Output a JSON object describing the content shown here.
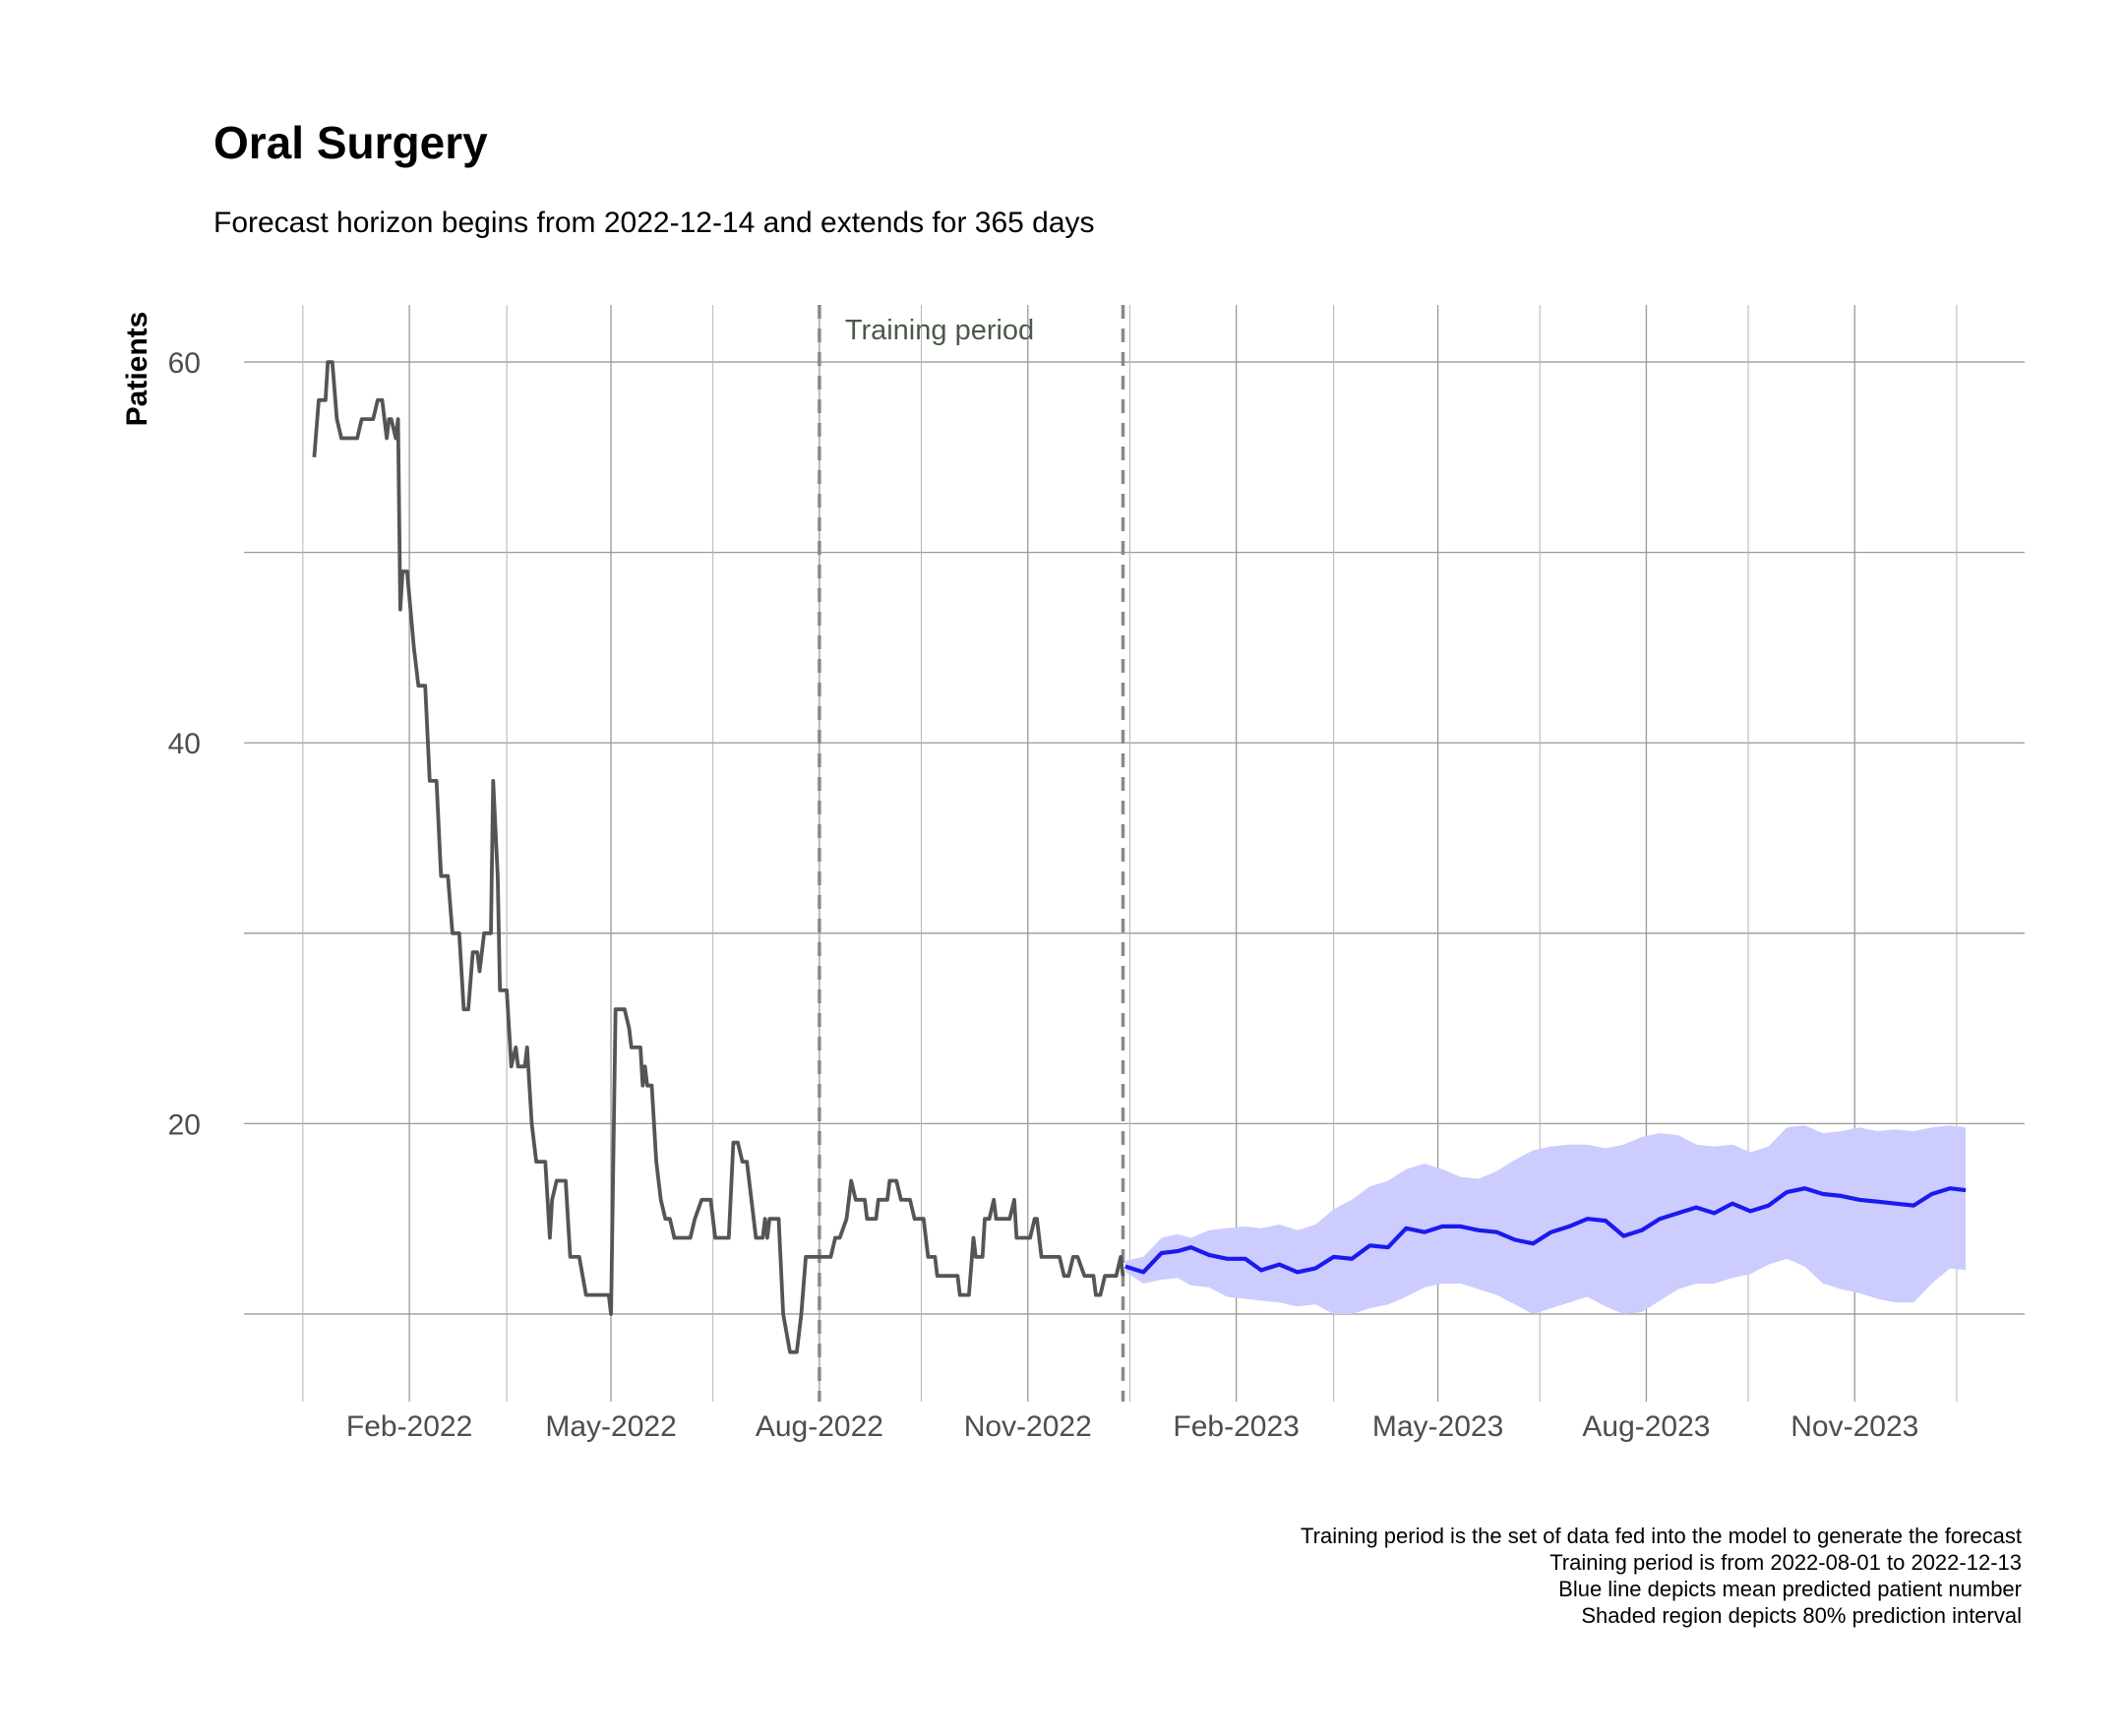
{
  "chart_data": {
    "type": "line",
    "title": "Oral Surgery",
    "subtitle": "Forecast horizon begins from 2022-12-14 and extends for 365 days",
    "ylabel": "Patients",
    "xlabel": "",
    "xlim": [
      "2021-11-20",
      "2024-01-15"
    ],
    "ylim": [
      5.4,
      63
    ],
    "y_ticks": [
      20,
      40,
      60
    ],
    "y_gridlines": [
      10,
      20,
      30,
      40,
      50,
      60
    ],
    "x_ticks": [
      {
        "date": "2022-02-01",
        "label": "Feb-2022"
      },
      {
        "date": "2022-05-01",
        "label": "May-2022"
      },
      {
        "date": "2022-08-01",
        "label": "Aug-2022"
      },
      {
        "date": "2022-11-01",
        "label": "Nov-2022"
      },
      {
        "date": "2023-02-01",
        "label": "Feb-2023"
      },
      {
        "date": "2023-05-01",
        "label": "May-2023"
      },
      {
        "date": "2023-08-01",
        "label": "Aug-2023"
      },
      {
        "date": "2023-11-01",
        "label": "Nov-2023"
      }
    ],
    "x_minor_gridlines": [
      "2021-12-16",
      "2022-03-16",
      "2022-06-15",
      "2022-09-15",
      "2022-12-16",
      "2023-03-16",
      "2023-06-15",
      "2023-09-15",
      "2023-12-16"
    ],
    "training_period": {
      "start": "2022-08-01",
      "end": "2022-12-13",
      "label": "Training period"
    },
    "grid": true,
    "series": [
      {
        "color": "#555555",
        "points": [
          [
            "2021-12-21",
            55
          ],
          [
            "2021-12-23",
            58
          ],
          [
            "2021-12-26",
            58
          ],
          [
            "2021-12-27",
            60
          ],
          [
            "2021-12-29",
            60
          ],
          [
            "2021-12-31",
            57
          ],
          [
            "2022-01-02",
            56
          ],
          [
            "2022-01-09",
            56
          ],
          [
            "2022-01-11",
            57
          ],
          [
            "2022-01-16",
            57
          ],
          [
            "2022-01-18",
            58
          ],
          [
            "2022-01-20",
            58
          ],
          [
            "2022-01-22",
            56
          ],
          [
            "2022-01-23",
            57
          ],
          [
            "2022-01-24",
            57
          ],
          [
            "2022-01-26",
            56
          ],
          [
            "2022-01-27",
            57
          ],
          [
            "2022-01-28",
            47
          ],
          [
            "2022-01-29",
            49
          ],
          [
            "2022-01-31",
            49
          ],
          [
            "2022-02-03",
            45
          ],
          [
            "2022-02-05",
            43
          ],
          [
            "2022-02-08",
            43
          ],
          [
            "2022-02-10",
            38
          ],
          [
            "2022-02-13",
            38
          ],
          [
            "2022-02-15",
            33
          ],
          [
            "2022-02-18",
            33
          ],
          [
            "2022-02-20",
            30
          ],
          [
            "2022-02-23",
            30
          ],
          [
            "2022-02-25",
            26
          ],
          [
            "2022-02-27",
            26
          ],
          [
            "2022-03-01",
            29
          ],
          [
            "2022-03-03",
            29
          ],
          [
            "2022-03-04",
            28
          ],
          [
            "2022-03-06",
            30
          ],
          [
            "2022-03-09",
            30
          ],
          [
            "2022-03-10",
            38
          ],
          [
            "2022-03-12",
            33
          ],
          [
            "2022-03-13",
            27
          ],
          [
            "2022-03-16",
            27
          ],
          [
            "2022-03-18",
            23
          ],
          [
            "2022-03-20",
            24
          ],
          [
            "2022-03-21",
            23
          ],
          [
            "2022-03-24",
            23
          ],
          [
            "2022-03-25",
            24
          ],
          [
            "2022-03-27",
            20
          ],
          [
            "2022-03-29",
            18
          ],
          [
            "2022-04-02",
            18
          ],
          [
            "2022-04-04",
            14
          ],
          [
            "2022-04-05",
            16
          ],
          [
            "2022-04-07",
            17
          ],
          [
            "2022-04-11",
            17
          ],
          [
            "2022-04-13",
            13
          ],
          [
            "2022-04-17",
            13
          ],
          [
            "2022-04-20",
            11
          ],
          [
            "2022-04-30",
            11
          ],
          [
            "2022-05-01",
            10
          ],
          [
            "2022-05-03",
            26
          ],
          [
            "2022-05-07",
            26
          ],
          [
            "2022-05-09",
            25
          ],
          [
            "2022-05-10",
            24
          ],
          [
            "2022-05-14",
            24
          ],
          [
            "2022-05-15",
            22
          ],
          [
            "2022-05-16",
            23
          ],
          [
            "2022-05-17",
            22
          ],
          [
            "2022-05-19",
            22
          ],
          [
            "2022-05-21",
            18
          ],
          [
            "2022-05-23",
            16
          ],
          [
            "2022-05-25",
            15
          ],
          [
            "2022-05-27",
            15
          ],
          [
            "2022-05-29",
            14
          ],
          [
            "2022-06-05",
            14
          ],
          [
            "2022-06-07",
            15
          ],
          [
            "2022-06-10",
            16
          ],
          [
            "2022-06-14",
            16
          ],
          [
            "2022-06-16",
            14
          ],
          [
            "2022-06-22",
            14
          ],
          [
            "2022-06-24",
            19
          ],
          [
            "2022-06-26",
            19
          ],
          [
            "2022-06-28",
            18
          ],
          [
            "2022-06-30",
            18
          ],
          [
            "2022-07-02",
            16
          ],
          [
            "2022-07-04",
            14
          ],
          [
            "2022-07-07",
            14
          ],
          [
            "2022-07-08",
            15
          ],
          [
            "2022-07-09",
            14
          ],
          [
            "2022-07-10",
            15
          ],
          [
            "2022-07-14",
            15
          ],
          [
            "2022-07-16",
            10
          ],
          [
            "2022-07-19",
            8
          ],
          [
            "2022-07-22",
            8
          ],
          [
            "2022-07-24",
            10
          ],
          [
            "2022-07-26",
            13
          ],
          [
            "2022-08-06",
            13
          ],
          [
            "2022-08-08",
            14
          ],
          [
            "2022-08-10",
            14
          ],
          [
            "2022-08-13",
            15
          ],
          [
            "2022-08-15",
            17
          ],
          [
            "2022-08-17",
            16
          ],
          [
            "2022-08-21",
            16
          ],
          [
            "2022-08-22",
            15
          ],
          [
            "2022-08-26",
            15
          ],
          [
            "2022-08-27",
            16
          ],
          [
            "2022-08-31",
            16
          ],
          [
            "2022-09-01",
            17
          ],
          [
            "2022-09-04",
            17
          ],
          [
            "2022-09-06",
            16
          ],
          [
            "2022-09-10",
            16
          ],
          [
            "2022-09-12",
            15
          ],
          [
            "2022-09-16",
            15
          ],
          [
            "2022-09-18",
            13
          ],
          [
            "2022-09-21",
            13
          ],
          [
            "2022-09-22",
            12
          ],
          [
            "2022-10-01",
            12
          ],
          [
            "2022-10-02",
            11
          ],
          [
            "2022-10-06",
            11
          ],
          [
            "2022-10-08",
            14
          ],
          [
            "2022-10-09",
            13
          ],
          [
            "2022-10-12",
            13
          ],
          [
            "2022-10-13",
            15
          ],
          [
            "2022-10-15",
            15
          ],
          [
            "2022-10-17",
            16
          ],
          [
            "2022-10-18",
            15
          ],
          [
            "2022-10-24",
            15
          ],
          [
            "2022-10-26",
            16
          ],
          [
            "2022-10-27",
            14
          ],
          [
            "2022-11-02",
            14
          ],
          [
            "2022-11-04",
            15
          ],
          [
            "2022-11-05",
            15
          ],
          [
            "2022-11-07",
            13
          ],
          [
            "2022-11-15",
            13
          ],
          [
            "2022-11-17",
            12
          ],
          [
            "2022-11-19",
            12
          ],
          [
            "2022-11-21",
            13
          ],
          [
            "2022-11-23",
            13
          ],
          [
            "2022-11-26",
            12
          ],
          [
            "2022-11-30",
            12
          ],
          [
            "2022-12-01",
            11
          ],
          [
            "2022-12-03",
            11
          ],
          [
            "2022-12-05",
            12
          ],
          [
            "2022-12-10",
            12
          ],
          [
            "2022-12-12",
            13
          ],
          [
            "2022-12-13",
            12
          ]
        ]
      },
      {
        "color": "#1a1aee",
        "points": [
          [
            "2022-12-14",
            12.5
          ],
          [
            "2022-12-22",
            12.2
          ],
          [
            "2022-12-30",
            13.2
          ],
          [
            "2023-01-06",
            13.3
          ],
          [
            "2023-01-12",
            13.5
          ],
          [
            "2023-01-20",
            13.1
          ],
          [
            "2023-01-28",
            12.9
          ],
          [
            "2023-02-05",
            12.9
          ],
          [
            "2023-02-12",
            12.3
          ],
          [
            "2023-02-20",
            12.6
          ],
          [
            "2023-02-28",
            12.2
          ],
          [
            "2023-03-08",
            12.4
          ],
          [
            "2023-03-16",
            13.0
          ],
          [
            "2023-03-24",
            12.9
          ],
          [
            "2023-04-01",
            13.6
          ],
          [
            "2023-04-09",
            13.5
          ],
          [
            "2023-04-17",
            14.5
          ],
          [
            "2023-04-25",
            14.3
          ],
          [
            "2023-05-03",
            14.6
          ],
          [
            "2023-05-11",
            14.6
          ],
          [
            "2023-05-19",
            14.4
          ],
          [
            "2023-05-27",
            14.3
          ],
          [
            "2023-06-04",
            13.9
          ],
          [
            "2023-06-12",
            13.7
          ],
          [
            "2023-06-20",
            14.3
          ],
          [
            "2023-06-28",
            14.6
          ],
          [
            "2023-07-06",
            15.0
          ],
          [
            "2023-07-14",
            14.9
          ],
          [
            "2023-07-22",
            14.1
          ],
          [
            "2023-07-30",
            14.4
          ],
          [
            "2023-08-07",
            15.0
          ],
          [
            "2023-08-15",
            15.3
          ],
          [
            "2023-08-23",
            15.6
          ],
          [
            "2023-08-31",
            15.3
          ],
          [
            "2023-09-08",
            15.8
          ],
          [
            "2023-09-16",
            15.4
          ],
          [
            "2023-09-24",
            15.7
          ],
          [
            "2023-10-02",
            16.4
          ],
          [
            "2023-10-10",
            16.6
          ],
          [
            "2023-10-18",
            16.3
          ],
          [
            "2023-10-26",
            16.2
          ],
          [
            "2023-11-03",
            16.0
          ],
          [
            "2023-11-11",
            15.9
          ],
          [
            "2023-11-19",
            15.8
          ],
          [
            "2023-11-27",
            15.7
          ],
          [
            "2023-12-05",
            16.3
          ],
          [
            "2023-12-13",
            16.6
          ],
          [
            "2023-12-20",
            16.5
          ]
        ]
      }
    ],
    "band": {
      "color": "#ccccff",
      "points": [
        [
          "2022-12-14",
          12.2,
          12.8
        ],
        [
          "2022-12-22",
          11.6,
          13.0
        ],
        [
          "2022-12-30",
          11.8,
          14.0
        ],
        [
          "2023-01-06",
          11.9,
          14.2
        ],
        [
          "2023-01-12",
          11.5,
          14.0
        ],
        [
          "2023-01-20",
          11.4,
          14.4
        ],
        [
          "2023-01-28",
          10.9,
          14.5
        ],
        [
          "2023-02-05",
          10.8,
          14.6
        ],
        [
          "2023-02-12",
          10.7,
          14.5
        ],
        [
          "2023-02-20",
          10.6,
          14.7
        ],
        [
          "2023-02-28",
          10.4,
          14.4
        ],
        [
          "2023-03-08",
          10.5,
          14.7
        ],
        [
          "2023-03-16",
          10.0,
          15.5
        ],
        [
          "2023-03-24",
          10.0,
          16.0
        ],
        [
          "2023-04-01",
          10.3,
          16.7
        ],
        [
          "2023-04-09",
          10.5,
          17.0
        ],
        [
          "2023-04-17",
          10.9,
          17.6
        ],
        [
          "2023-04-25",
          11.4,
          17.9
        ],
        [
          "2023-05-03",
          11.6,
          17.6
        ],
        [
          "2023-05-11",
          11.6,
          17.2
        ],
        [
          "2023-05-19",
          11.3,
          17.1
        ],
        [
          "2023-05-27",
          11.0,
          17.5
        ],
        [
          "2023-06-04",
          10.5,
          18.1
        ],
        [
          "2023-06-12",
          10.0,
          18.6
        ],
        [
          "2023-06-20",
          10.3,
          18.8
        ],
        [
          "2023-06-28",
          10.6,
          18.9
        ],
        [
          "2023-07-06",
          10.9,
          18.9
        ],
        [
          "2023-07-14",
          10.4,
          18.7
        ],
        [
          "2023-07-22",
          10.0,
          18.9
        ],
        [
          "2023-07-30",
          10.1,
          19.3
        ],
        [
          "2023-08-07",
          10.7,
          19.5
        ],
        [
          "2023-08-15",
          11.3,
          19.4
        ],
        [
          "2023-08-23",
          11.6,
          18.9
        ],
        [
          "2023-08-31",
          11.6,
          18.8
        ],
        [
          "2023-09-08",
          11.9,
          18.9
        ],
        [
          "2023-09-16",
          12.1,
          18.5
        ],
        [
          "2023-09-24",
          12.6,
          18.8
        ],
        [
          "2023-10-02",
          12.9,
          19.8
        ],
        [
          "2023-10-10",
          12.5,
          19.9
        ],
        [
          "2023-10-18",
          11.6,
          19.5
        ],
        [
          "2023-10-26",
          11.3,
          19.6
        ],
        [
          "2023-11-03",
          11.1,
          19.8
        ],
        [
          "2023-11-11",
          10.8,
          19.6
        ],
        [
          "2023-11-19",
          10.6,
          19.7
        ],
        [
          "2023-11-27",
          10.6,
          19.6
        ],
        [
          "2023-12-05",
          11.6,
          19.8
        ],
        [
          "2023-12-13",
          12.4,
          19.9
        ],
        [
          "2023-12-20",
          12.3,
          19.8
        ]
      ]
    },
    "captions": [
      "Training period is the set of data fed into the model to generate the forecast",
      "Training period is from 2022-08-01 to 2022-12-13",
      "Blue line depicts mean predicted patient number",
      "Shaded region depicts 80% prediction interval"
    ]
  }
}
